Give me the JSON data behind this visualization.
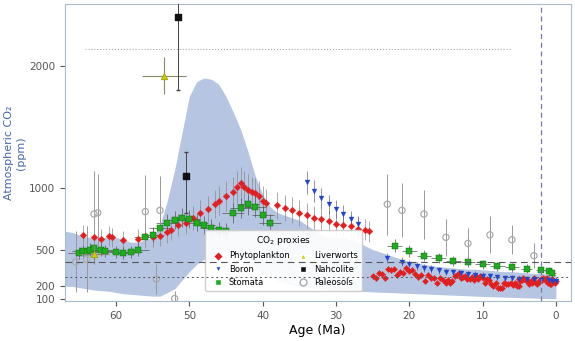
{
  "xlabel": "Age (Ma)",
  "ylabel": "Atmospheric CO₂\n(ppm)",
  "xlim": [
    67,
    -2
  ],
  "ylim": [
    80,
    2500
  ],
  "yticks": [
    100,
    200,
    500,
    1000,
    2000
  ],
  "xticks": [
    60,
    50,
    40,
    30,
    20,
    10,
    0
  ],
  "background_color": "#ffffff",
  "blue_band_color": "#5b7fbf",
  "blue_band_alpha": 0.45,
  "dashed_line_upper": 400,
  "dashed_line_lower": 280,
  "proxy_colors": {
    "phytoplankton": "#e02020",
    "stomata": "#22aa22",
    "nahcolite": "#111111",
    "boron": "#2244cc",
    "liverworts": "#cccc00",
    "paleosols": "#aaaaaa"
  },
  "blue_band_x": [
    67,
    66,
    65,
    64,
    63,
    62,
    61,
    60,
    59,
    58,
    57,
    56,
    55,
    54,
    53,
    52,
    51,
    50,
    49,
    48,
    47,
    46,
    45,
    44,
    43,
    42,
    41,
    40,
    39,
    38,
    37,
    36,
    35,
    34,
    33,
    32,
    31,
    30,
    29,
    28,
    27,
    26,
    25,
    24,
    23,
    22,
    21,
    20,
    19,
    18,
    17,
    16,
    15,
    14,
    13,
    12,
    11,
    10,
    9,
    8,
    7,
    6,
    5,
    4,
    3,
    2,
    1,
    0
  ],
  "blue_band_upper": [
    650,
    640,
    620,
    600,
    600,
    600,
    600,
    600,
    580,
    560,
    560,
    580,
    600,
    700,
    900,
    1150,
    1450,
    1750,
    1870,
    1900,
    1890,
    1850,
    1750,
    1620,
    1480,
    1300,
    1100,
    950,
    850,
    800,
    780,
    760,
    740,
    700,
    660,
    620,
    600,
    600,
    600,
    580,
    560,
    530,
    500,
    480,
    460,
    440,
    420,
    400,
    390,
    380,
    370,
    360,
    355,
    350,
    345,
    340,
    340,
    335,
    330,
    325,
    320,
    320,
    315,
    310,
    305,
    305,
    300,
    300
  ],
  "blue_band_lower": [
    200,
    200,
    190,
    180,
    170,
    165,
    160,
    150,
    140,
    135,
    130,
    125,
    120,
    120,
    150,
    180,
    250,
    320,
    380,
    420,
    450,
    470,
    480,
    470,
    450,
    400,
    350,
    300,
    270,
    250,
    230,
    215,
    200,
    190,
    185,
    180,
    175,
    170,
    165,
    162,
    160,
    158,
    155,
    152,
    150,
    148,
    145,
    143,
    140,
    138,
    135,
    133,
    130,
    128,
    125,
    123,
    120,
    118,
    116,
    114,
    112,
    110,
    108,
    106,
    104,
    102,
    100,
    100
  ]
}
